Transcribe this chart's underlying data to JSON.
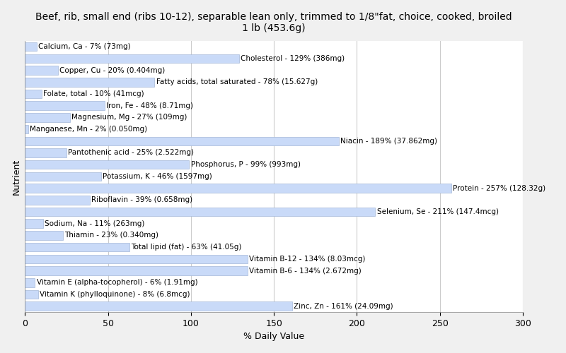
{
  "title": "Beef, rib, small end (ribs 10-12), separable lean only, trimmed to 1/8\"fat, choice, cooked, broiled\n1 lb (453.6g)",
  "xlabel": "% Daily Value",
  "ylabel": "Nutrient",
  "nutrients": [
    "Calcium, Ca - 7% (73mg)",
    "Cholesterol - 129% (386mg)",
    "Copper, Cu - 20% (0.404mg)",
    "Fatty acids, total saturated - 78% (15.627g)",
    "Folate, total - 10% (41mcg)",
    "Iron, Fe - 48% (8.71mg)",
    "Magnesium, Mg - 27% (109mg)",
    "Manganese, Mn - 2% (0.050mg)",
    "Niacin - 189% (37.862mg)",
    "Pantothenic acid - 25% (2.522mg)",
    "Phosphorus, P - 99% (993mg)",
    "Potassium, K - 46% (1597mg)",
    "Protein - 257% (128.32g)",
    "Riboflavin - 39% (0.658mg)",
    "Selenium, Se - 211% (147.4mcg)",
    "Sodium, Na - 11% (263mg)",
    "Thiamin - 23% (0.340mg)",
    "Total lipid (fat) - 63% (41.05g)",
    "Vitamin B-12 - 134% (8.03mcg)",
    "Vitamin B-6 - 134% (2.672mg)",
    "Vitamin E (alpha-tocopherol) - 6% (1.91mg)",
    "Vitamin K (phylloquinone) - 8% (6.8mcg)",
    "Zinc, Zn - 161% (24.09mg)"
  ],
  "values": [
    7,
    129,
    20,
    78,
    10,
    48,
    27,
    2,
    189,
    25,
    99,
    46,
    257,
    39,
    211,
    11,
    23,
    63,
    134,
    134,
    6,
    8,
    161
  ],
  "bar_color": "#c9daf8",
  "bar_edge_color": "#a4b8d8",
  "background_color": "#f0f0f0",
  "plot_background": "#ffffff",
  "xlim": [
    0,
    300
  ],
  "xticks": [
    0,
    50,
    100,
    150,
    200,
    250,
    300
  ],
  "grid_color": "#cccccc",
  "title_fontsize": 10,
  "label_fontsize": 7.5,
  "tick_fontsize": 9
}
